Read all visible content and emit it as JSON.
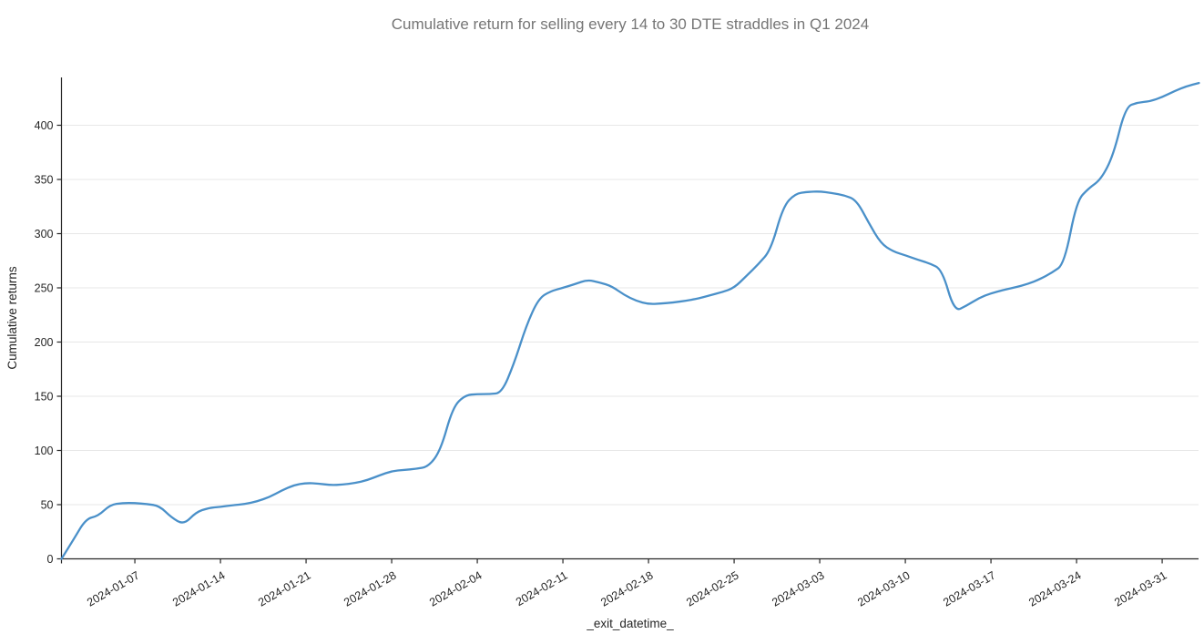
{
  "figure": {
    "title": "Cumulative return for selling every 14 to 30 DTE straddles in Q1 2024"
  },
  "chart_data": {
    "type": "line",
    "title": "Cumulative return for selling every 14 to 30 DTE straddles in Q1 2024",
    "xlabel": "_exit_datetime_",
    "ylabel": "Cumulative returns",
    "x": [
      "2024-01-01",
      "2024-01-02",
      "2024-01-03",
      "2024-01-04",
      "2024-01-05",
      "2024-01-06",
      "2024-01-07",
      "2024-01-08",
      "2024-01-09",
      "2024-01-10",
      "2024-01-11",
      "2024-01-12",
      "2024-01-13",
      "2024-01-14",
      "2024-01-15",
      "2024-01-16",
      "2024-01-17",
      "2024-01-18",
      "2024-01-19",
      "2024-01-20",
      "2024-01-21",
      "2024-01-22",
      "2024-01-23",
      "2024-01-24",
      "2024-01-25",
      "2024-01-26",
      "2024-01-27",
      "2024-01-28",
      "2024-01-29",
      "2024-01-30",
      "2024-01-31",
      "2024-02-01",
      "2024-02-02",
      "2024-02-03",
      "2024-02-04",
      "2024-02-05",
      "2024-02-06",
      "2024-02-07",
      "2024-02-08",
      "2024-02-09",
      "2024-02-10",
      "2024-02-11",
      "2024-02-12",
      "2024-02-13",
      "2024-02-14",
      "2024-02-15",
      "2024-02-16",
      "2024-02-17",
      "2024-02-18",
      "2024-02-19",
      "2024-02-20",
      "2024-02-21",
      "2024-02-22",
      "2024-02-23",
      "2024-02-24",
      "2024-02-25",
      "2024-02-26",
      "2024-02-27",
      "2024-02-28",
      "2024-02-29",
      "2024-03-01",
      "2024-03-02",
      "2024-03-03",
      "2024-03-04",
      "2024-03-05",
      "2024-03-06",
      "2024-03-07",
      "2024-03-08",
      "2024-03-09",
      "2024-03-10",
      "2024-03-11",
      "2024-03-12",
      "2024-03-13",
      "2024-03-14",
      "2024-03-15",
      "2024-03-16",
      "2024-03-17",
      "2024-03-18",
      "2024-03-19",
      "2024-03-20",
      "2024-03-21",
      "2024-03-22",
      "2024-03-23",
      "2024-03-24",
      "2024-03-25",
      "2024-03-26",
      "2024-03-27",
      "2024-03-28",
      "2024-03-29",
      "2024-03-30",
      "2024-03-31",
      "2024-04-01",
      "2024-04-02",
      "2024-04-03"
    ],
    "values": [
      0,
      18,
      37,
      39.5,
      50,
      51.5,
      51.5,
      50.5,
      49,
      38,
      31.5,
      43,
      47,
      48,
      49.5,
      50.5,
      53,
      57,
      63,
      68,
      70,
      69.5,
      68,
      68.5,
      70,
      72.5,
      77,
      81,
      82,
      83,
      85,
      100,
      140,
      151,
      152,
      152,
      153,
      180,
      215,
      240,
      247,
      250,
      253.5,
      257.5,
      255,
      251.5,
      243.5,
      238,
      235,
      235.5,
      236.5,
      238,
      240,
      243,
      246,
      250,
      261,
      272,
      285,
      325,
      337,
      338.5,
      339,
      337.5,
      335.5,
      331,
      310,
      291,
      283.5,
      280,
      276,
      272.5,
      267,
      228,
      233.5,
      240.5,
      245,
      248,
      250.5,
      253.5,
      258,
      264,
      272,
      330,
      342,
      350,
      372,
      417,
      421,
      422,
      426,
      431.5,
      436,
      439
    ],
    "ylim": [
      0,
      444
    ],
    "xlim": [
      "2024-01-01",
      "2024-04-03"
    ],
    "y_ticks": [
      0,
      50,
      100,
      150,
      200,
      250,
      300,
      350,
      400
    ],
    "x_tick_labels": [
      "2024-01-07",
      "2024-01-14",
      "2024-01-21",
      "2024-01-28",
      "2024-02-04",
      "2024-02-11",
      "2024-02-18",
      "2024-02-25",
      "2024-03-03",
      "2024-03-10",
      "2024-03-17",
      "2024-03-24",
      "2024-03-31"
    ],
    "legend": "none",
    "grid": "horizontal-only",
    "line_color": "#4a90c9",
    "grid_color": "#e7e7e7",
    "spine_color": "#262626",
    "title_color": "#757575",
    "tick_color": "#262626"
  }
}
